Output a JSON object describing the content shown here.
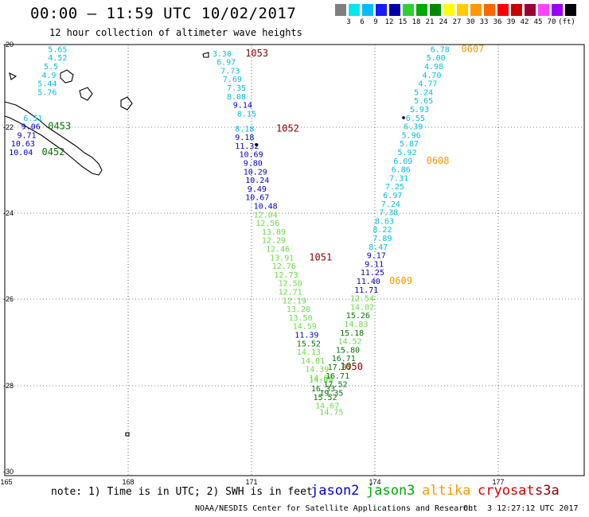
{
  "header": {
    "title": "00:00 – 11:59 UTC 10/02/2017",
    "subtitle": "12 hour collection of altimeter wave heights"
  },
  "scale": {
    "unit": "(ft)",
    "colors": [
      "#7f7f7f",
      "#00e8f0",
      "#00bcff",
      "#1a1aff",
      "#0000aa",
      "#2fd12f",
      "#00aa00",
      "#008800",
      "#ffff00",
      "#ffcc00",
      "#ff9900",
      "#ff6600",
      "#ff0000",
      "#cc0000",
      "#990033",
      "#ff44ff",
      "#9900ff",
      "#000000"
    ],
    "labels": [
      "3",
      "6",
      "9",
      "12",
      "15",
      "18",
      "21",
      "24",
      "27",
      "30",
      "33",
      "36",
      "39",
      "42",
      "45",
      "70"
    ]
  },
  "axes": {
    "lat_labels": [
      "-20",
      "-22",
      "-24",
      "-26",
      "-28",
      "-30"
    ],
    "lon_labels": [
      "165",
      "168",
      "171",
      "174",
      "177"
    ]
  },
  "tracks": {
    "colors": {
      "cyan": "#00c0dd",
      "blue": "#0000cc",
      "lightgreen": "#66dd44",
      "green": "#007700",
      "darkred": "#880000",
      "orange": "#ff9900"
    },
    "labels": [
      {
        "t": "5.65",
        "c": "cyan",
        "lon": 166.05,
        "lat": -20.1
      },
      {
        "t": "4.52",
        "c": "cyan",
        "lon": 166.05,
        "lat": -20.3
      },
      {
        "t": "5.5",
        "c": "cyan",
        "lon": 165.95,
        "lat": -20.5
      },
      {
        "t": "4.9",
        "c": "cyan",
        "lon": 165.9,
        "lat": -20.7
      },
      {
        "t": "5.44",
        "c": "cyan",
        "lon": 165.8,
        "lat": -20.9
      },
      {
        "t": "5.76",
        "c": "cyan",
        "lon": 165.8,
        "lat": -21.1
      },
      {
        "t": "6.51",
        "c": "cyan",
        "lon": 165.45,
        "lat": -21.7
      },
      {
        "t": "9.06",
        "c": "blue",
        "lon": 165.4,
        "lat": -21.9
      },
      {
        "t": "9.71",
        "c": "blue",
        "lon": 165.3,
        "lat": -22.1
      },
      {
        "t": "10.63",
        "c": "blue",
        "lon": 165.15,
        "lat": -22.3
      },
      {
        "t": "10.04",
        "c": "blue",
        "lon": 165.1,
        "lat": -22.5
      },
      {
        "t": "0453",
        "c": "green",
        "lon": 166.05,
        "lat": -21.9
      },
      {
        "t": "0452",
        "c": "green",
        "lon": 165.9,
        "lat": -22.5
      },
      {
        "t": "3.30",
        "c": "cyan",
        "lon": 170.05,
        "lat": -20.2
      },
      {
        "t": "1053",
        "c": "darkred",
        "lon": 170.85,
        "lat": -20.2
      },
      {
        "t": "6.97",
        "c": "cyan",
        "lon": 170.15,
        "lat": -20.4
      },
      {
        "t": "7.73",
        "c": "cyan",
        "lon": 170.25,
        "lat": -20.6
      },
      {
        "t": "7.69",
        "c": "cyan",
        "lon": 170.3,
        "lat": -20.8
      },
      {
        "t": "7.35",
        "c": "cyan",
        "lon": 170.4,
        "lat": -21.0
      },
      {
        "t": "8.08",
        "c": "cyan",
        "lon": 170.4,
        "lat": -21.2
      },
      {
        "t": "9.14",
        "c": "blue",
        "lon": 170.55,
        "lat": -21.4
      },
      {
        "t": "8.15",
        "c": "cyan",
        "lon": 170.65,
        "lat": -21.6
      },
      {
        "t": "8.18",
        "c": "cyan",
        "lon": 170.6,
        "lat": -21.95
      },
      {
        "t": "1052",
        "c": "darkred",
        "lon": 171.6,
        "lat": -21.95
      },
      {
        "t": "9.18",
        "c": "blue",
        "lon": 170.6,
        "lat": -22.15
      },
      {
        "t": "11.32",
        "c": "blue",
        "lon": 170.6,
        "lat": -22.35
      },
      {
        "t": "10.69",
        "c": "blue",
        "lon": 170.7,
        "lat": -22.55
      },
      {
        "t": "9.80",
        "c": "blue",
        "lon": 170.8,
        "lat": -22.75
      },
      {
        "t": "10.29",
        "c": "blue",
        "lon": 170.8,
        "lat": -22.95
      },
      {
        "t": "10.24",
        "c": "blue",
        "lon": 170.85,
        "lat": -23.15
      },
      {
        "t": "9.49",
        "c": "blue",
        "lon": 170.9,
        "lat": -23.35
      },
      {
        "t": "10.67",
        "c": "blue",
        "lon": 170.85,
        "lat": -23.55
      },
      {
        "t": "10.48",
        "c": "blue",
        "lon": 171.05,
        "lat": -23.75
      },
      {
        "t": "12.04",
        "c": "lightgreen",
        "lon": 171.05,
        "lat": -23.95
      },
      {
        "t": "12.56",
        "c": "lightgreen",
        "lon": 171.1,
        "lat": -24.15
      },
      {
        "t": "13.89",
        "c": "lightgreen",
        "lon": 171.25,
        "lat": -24.35
      },
      {
        "t": "12.29",
        "c": "lightgreen",
        "lon": 171.25,
        "lat": -24.55
      },
      {
        "t": "12.46",
        "c": "lightgreen",
        "lon": 171.35,
        "lat": -24.75
      },
      {
        "t": "13.91",
        "c": "lightgreen",
        "lon": 171.45,
        "lat": -24.95
      },
      {
        "t": "1051",
        "c": "darkred",
        "lon": 172.4,
        "lat": -24.95
      },
      {
        "t": "12.76",
        "c": "lightgreen",
        "lon": 171.5,
        "lat": -25.15
      },
      {
        "t": "12.73",
        "c": "lightgreen",
        "lon": 171.55,
        "lat": -25.35
      },
      {
        "t": "12.50",
        "c": "lightgreen",
        "lon": 171.65,
        "lat": -25.55
      },
      {
        "t": "12.71",
        "c": "lightgreen",
        "lon": 171.65,
        "lat": -25.75
      },
      {
        "t": "12.19",
        "c": "lightgreen",
        "lon": 171.75,
        "lat": -25.95
      },
      {
        "t": "13.28",
        "c": "lightgreen",
        "lon": 171.85,
        "lat": -26.15
      },
      {
        "t": "13.50",
        "c": "lightgreen",
        "lon": 171.9,
        "lat": -26.35
      },
      {
        "t": "14.59",
        "c": "lightgreen",
        "lon": 172.0,
        "lat": -26.55
      },
      {
        "t": "11.39",
        "c": "blue",
        "lon": 172.05,
        "lat": -26.75
      },
      {
        "t": "15.52",
        "c": "green",
        "lon": 172.1,
        "lat": -26.95
      },
      {
        "t": "14.13",
        "c": "lightgreen",
        "lon": 172.1,
        "lat": -27.15
      },
      {
        "t": "14.01",
        "c": "lightgreen",
        "lon": 172.2,
        "lat": -27.35
      },
      {
        "t": "14.39",
        "c": "lightgreen",
        "lon": 172.3,
        "lat": -27.55
      },
      {
        "t": "14.69",
        "c": "lightgreen",
        "lon": 172.4,
        "lat": -27.75
      },
      {
        "t": "14.69",
        "c": "lightgreen",
        "lon": 172.4,
        "lat": -27.8
      },
      {
        "t": "16.33",
        "c": "green",
        "lon": 172.45,
        "lat": -28.0
      },
      {
        "t": "15.52",
        "c": "green",
        "lon": 172.5,
        "lat": -28.2
      },
      {
        "t": "14.67",
        "c": "lightgreen",
        "lon": 172.55,
        "lat": -28.4
      },
      {
        "t": "14.75",
        "c": "lightgreen",
        "lon": 172.65,
        "lat": -28.55
      },
      {
        "t": "6.78",
        "c": "cyan",
        "lon": 175.35,
        "lat": -20.1
      },
      {
        "t": "0607",
        "c": "orange",
        "lon": 176.1,
        "lat": -20.1
      },
      {
        "t": "5.00",
        "c": "cyan",
        "lon": 175.25,
        "lat": -20.3
      },
      {
        "t": "4.98",
        "c": "cyan",
        "lon": 175.2,
        "lat": -20.5
      },
      {
        "t": "4.70",
        "c": "cyan",
        "lon": 175.15,
        "lat": -20.7
      },
      {
        "t": "4.77",
        "c": "cyan",
        "lon": 175.05,
        "lat": -20.9
      },
      {
        "t": "5.24",
        "c": "cyan",
        "lon": 174.95,
        "lat": -21.1
      },
      {
        "t": "5.65",
        "c": "cyan",
        "lon": 174.95,
        "lat": -21.3
      },
      {
        "t": "5.93",
        "c": "cyan",
        "lon": 174.85,
        "lat": -21.5
      },
      {
        "t": "6.55",
        "c": "cyan",
        "lon": 174.75,
        "lat": -21.7
      },
      {
        "t": "6.39",
        "c": "cyan",
        "lon": 174.7,
        "lat": -21.9
      },
      {
        "t": "5.96",
        "c": "cyan",
        "lon": 174.65,
        "lat": -22.1
      },
      {
        "t": "5.87",
        "c": "cyan",
        "lon": 174.6,
        "lat": -22.3
      },
      {
        "t": "5.92",
        "c": "cyan",
        "lon": 174.55,
        "lat": -22.5
      },
      {
        "t": "6.09",
        "c": "cyan",
        "lon": 174.45,
        "lat": -22.7
      },
      {
        "t": "0608",
        "c": "orange",
        "lon": 175.25,
        "lat": -22.7
      },
      {
        "t": "6.86",
        "c": "cyan",
        "lon": 174.4,
        "lat": -22.9
      },
      {
        "t": "7.31",
        "c": "cyan",
        "lon": 174.35,
        "lat": -23.1
      },
      {
        "t": "7.25",
        "c": "cyan",
        "lon": 174.25,
        "lat": -23.3
      },
      {
        "t": "6.97",
        "c": "cyan",
        "lon": 174.2,
        "lat": -23.5
      },
      {
        "t": "7.24",
        "c": "cyan",
        "lon": 174.15,
        "lat": -23.7
      },
      {
        "t": "7.38",
        "c": "cyan",
        "lon": 174.1,
        "lat": -23.9
      },
      {
        "t": "8.63",
        "c": "cyan",
        "lon": 174.0,
        "lat": -24.1
      },
      {
        "t": "8.22",
        "c": "cyan",
        "lon": 173.95,
        "lat": -24.3
      },
      {
        "t": "7.89",
        "c": "cyan",
        "lon": 173.95,
        "lat": -24.5
      },
      {
        "t": "8.47",
        "c": "cyan",
        "lon": 173.85,
        "lat": -24.7
      },
      {
        "t": "9.17",
        "c": "blue",
        "lon": 173.8,
        "lat": -24.9
      },
      {
        "t": "9.11",
        "c": "blue",
        "lon": 173.75,
        "lat": -25.1
      },
      {
        "t": "11.25",
        "c": "blue",
        "lon": 173.65,
        "lat": -25.3
      },
      {
        "t": "11.40",
        "c": "blue",
        "lon": 173.55,
        "lat": -25.5
      },
      {
        "t": "0609",
        "c": "orange",
        "lon": 174.35,
        "lat": -25.5
      },
      {
        "t": "11.71",
        "c": "blue",
        "lon": 173.5,
        "lat": -25.7
      },
      {
        "t": "12.54",
        "c": "lightgreen",
        "lon": 173.4,
        "lat": -25.9
      },
      {
        "t": "14.02",
        "c": "lightgreen",
        "lon": 173.4,
        "lat": -26.1
      },
      {
        "t": "15.26",
        "c": "green",
        "lon": 173.3,
        "lat": -26.3
      },
      {
        "t": "14.83",
        "c": "lightgreen",
        "lon": 173.25,
        "lat": -26.5
      },
      {
        "t": "15.18",
        "c": "green",
        "lon": 173.15,
        "lat": -26.7
      },
      {
        "t": "14.52",
        "c": "lightgreen",
        "lon": 173.1,
        "lat": -26.9
      },
      {
        "t": "15.80",
        "c": "green",
        "lon": 173.05,
        "lat": -27.1
      },
      {
        "t": "16.71",
        "c": "green",
        "lon": 172.95,
        "lat": -27.3
      },
      {
        "t": "1050",
        "c": "darkred",
        "lon": 173.15,
        "lat": -27.5
      },
      {
        "t": "17.07",
        "c": "green",
        "lon": 172.85,
        "lat": -27.5
      },
      {
        "t": "16.71",
        "c": "green",
        "lon": 172.8,
        "lat": -27.7
      },
      {
        "t": "17.52",
        "c": "green",
        "lon": 172.75,
        "lat": -27.9
      },
      {
        "t": "19.35",
        "c": "green",
        "lon": 172.65,
        "lat": -28.1
      }
    ]
  },
  "footer": {
    "note": "note: 1) Time is in UTC; 2) SWH is in feet",
    "satellites": [
      {
        "name": "jason2",
        "color": "#0000dd"
      },
      {
        "name": "jason3",
        "color": "#00aa00"
      },
      {
        "name": "altika",
        "color": "#ff9900"
      },
      {
        "name": "cryosat",
        "color": "#dd0000"
      },
      {
        "name": "s3a",
        "color": "#880000"
      }
    ],
    "credit": "NOAA/NESDIS Center for Satellite Applications and Research",
    "date": "Oct  3 12:27:12 UTC 2017"
  }
}
